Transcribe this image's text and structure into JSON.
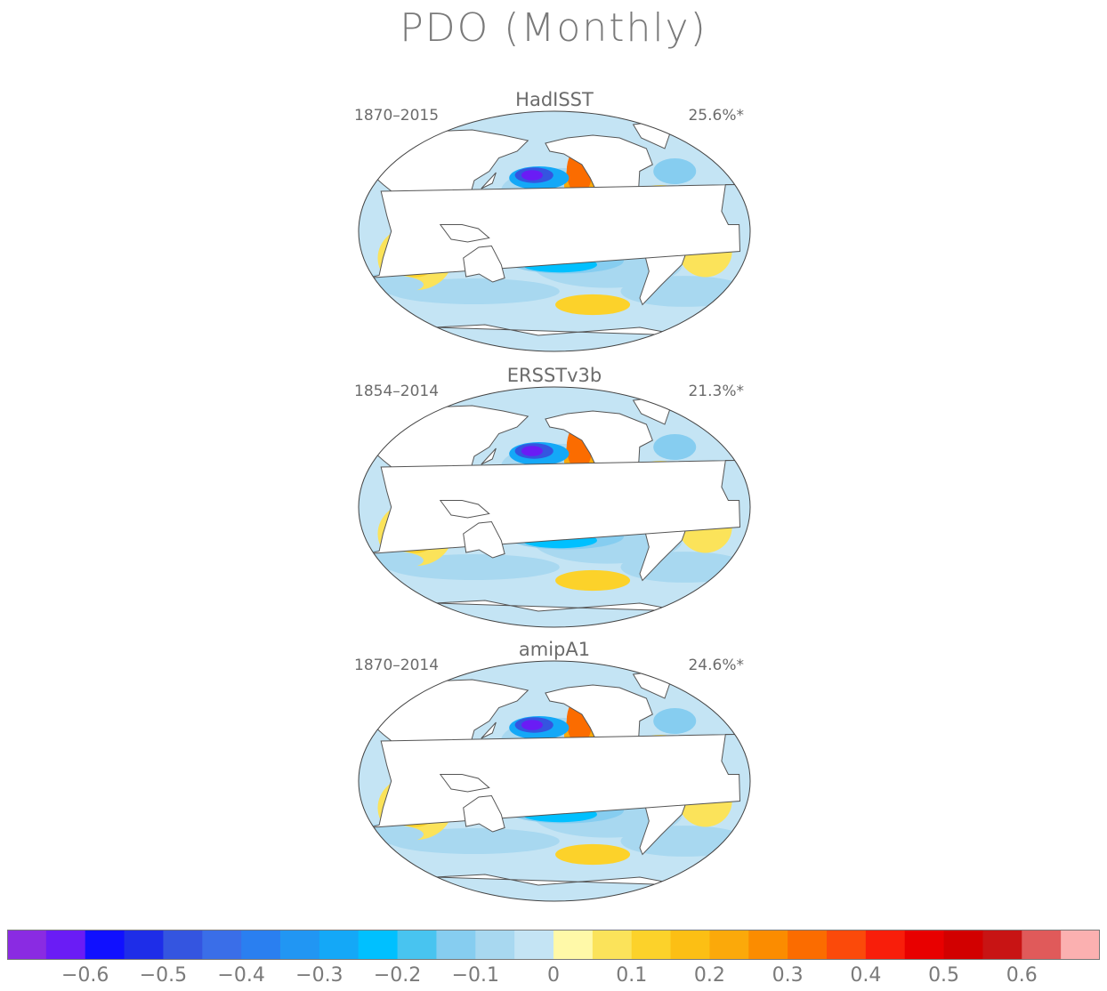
{
  "title": "PDO (Monthly)",
  "panels": [
    {
      "name": "HadISST",
      "period": "1870–2015",
      "variance": "25.6%*"
    },
    {
      "name": "ERSSTv3b",
      "period": "1854–2014",
      "variance": "21.3%*"
    },
    {
      "name": "amipA1",
      "period": "1870–2014",
      "variance": "24.6%*"
    }
  ],
  "colorbar": {
    "colors": [
      "#8a2be2",
      "#6a1cf5",
      "#1010ff",
      "#1e2de8",
      "#3455e0",
      "#3a6ee8",
      "#2a7ff0",
      "#2196f3",
      "#14a8f7",
      "#00c0ff",
      "#48c4f0",
      "#86cdf0",
      "#a8d8f0",
      "#c4e4f4",
      "#fff9a8",
      "#fbe35a",
      "#fcd22a",
      "#fcbf14",
      "#fba90a",
      "#fb8c00",
      "#fb6c00",
      "#fb4a0a",
      "#f81e0a",
      "#e80000",
      "#d20000",
      "#c81414",
      "#e05a5a",
      "#fbb0b0"
    ],
    "labels": [
      "−0.6",
      "−0.5",
      "−0.4",
      "−0.3",
      "−0.2",
      "−0.1",
      "0",
      "0.1",
      "0.2",
      "0.3",
      "0.4",
      "0.5",
      "0.6"
    ],
    "values": [
      -0.6,
      -0.5,
      -0.4,
      -0.3,
      -0.2,
      -0.1,
      0,
      0.1,
      0.2,
      0.3,
      0.4,
      0.5,
      0.6
    ]
  }
}
